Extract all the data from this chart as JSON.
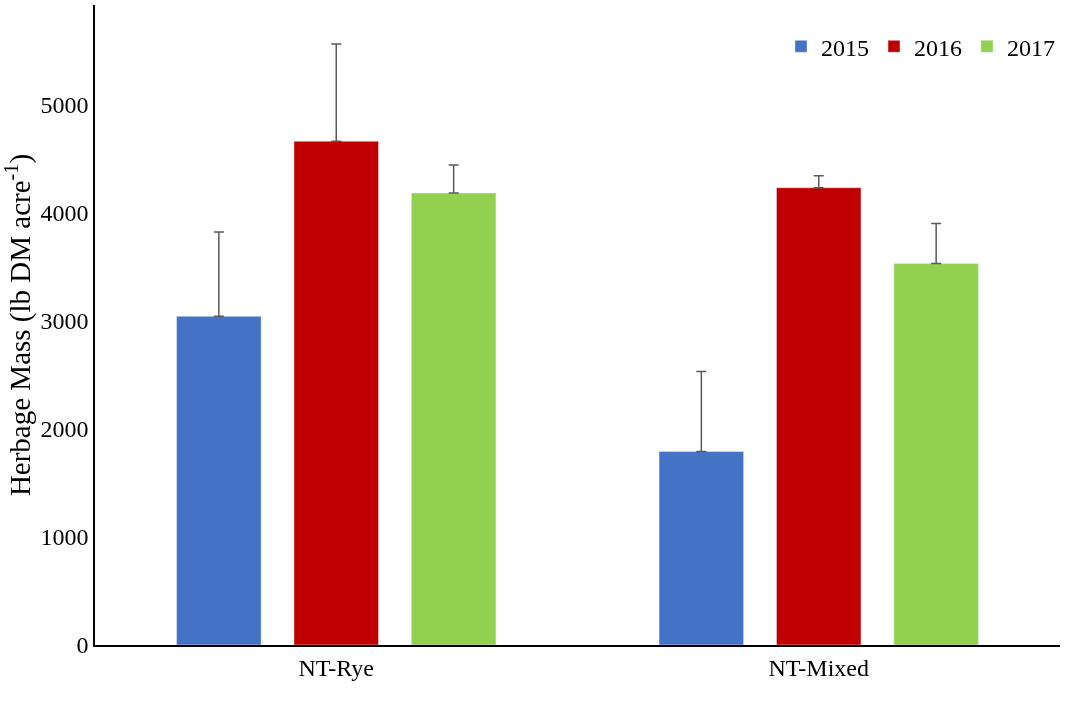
{
  "chart_data": {
    "type": "bar",
    "ylabel": "Herbage Mass (lb DM acre$^{-1}$)",
    "categories": [
      "NT-Rye",
      "NT-Mixed"
    ],
    "series": [
      {
        "name": "2015",
        "color": "#4472c4",
        "values": [
          3040,
          1790
        ],
        "errors": [
          [
            3040,
            3820
          ],
          [
            1790,
            2530
          ]
        ]
      },
      {
        "name": "2016",
        "color": "#c00000",
        "values": [
          4660,
          4230
        ],
        "errors": [
          [
            4660,
            5560
          ],
          [
            4230,
            4340
          ]
        ]
      },
      {
        "name": "2017",
        "color": "#92d050",
        "values": [
          4180,
          3530
        ],
        "errors": [
          [
            4180,
            4440
          ],
          [
            3530,
            3900
          ]
        ]
      }
    ],
    "ylim": [
      0,
      5920
    ],
    "yticks": [
      0,
      1000,
      2000,
      3000,
      4000,
      5000
    ],
    "grid": false,
    "legend": "top right"
  }
}
